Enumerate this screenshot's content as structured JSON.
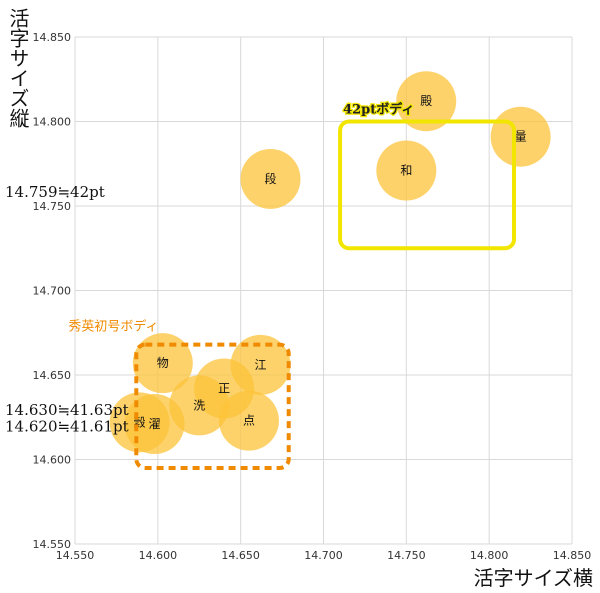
{
  "chart_data": {
    "type": "scatter",
    "xlabel": "活字サイズ横",
    "ylabel": "活字サイズ縦",
    "xlim": [
      14.55,
      14.85
    ],
    "ylim": [
      14.55,
      14.85
    ],
    "xticks": [
      "14.550",
      "14.600",
      "14.650",
      "14.700",
      "14.750",
      "14.800",
      "14.850"
    ],
    "yticks": [
      "14.550",
      "14.600",
      "14.650",
      "14.700",
      "14.750",
      "14.800",
      "14.850"
    ],
    "grid": true,
    "point_color": "#fcc33a",
    "points": [
      {
        "label": "殿",
        "x": 14.762,
        "y": 14.812
      },
      {
        "label": "量",
        "x": 14.819,
        "y": 14.791
      },
      {
        "label": "和",
        "x": 14.75,
        "y": 14.771
      },
      {
        "label": "段",
        "x": 14.668,
        "y": 14.766
      },
      {
        "label": "物",
        "x": 14.603,
        "y": 14.657
      },
      {
        "label": "江",
        "x": 14.662,
        "y": 14.656
      },
      {
        "label": "正",
        "x": 14.64,
        "y": 14.642
      },
      {
        "label": "洗",
        "x": 14.625,
        "y": 14.632
      },
      {
        "label": "点",
        "x": 14.655,
        "y": 14.623
      },
      {
        "label": "穀",
        "x": 14.589,
        "y": 14.622
      },
      {
        "label": "濯",
        "x": 14.598,
        "y": 14.621
      }
    ],
    "groups": [
      {
        "name": "42ptボディ",
        "color": "#f2e600",
        "x_range": [
          14.71,
          14.815
        ],
        "y_range": [
          14.725,
          14.8
        ],
        "style": "solid"
      },
      {
        "name": "秀英初号ボディ",
        "color": "#f08a00",
        "x_range": [
          14.587,
          14.679
        ],
        "y_range": [
          14.595,
          14.668
        ],
        "style": "dashed"
      }
    ],
    "annotations": [
      {
        "text": "14.759≒42pt",
        "value": 14.759
      },
      {
        "text": "14.630≒41.63pt",
        "value": 14.63
      },
      {
        "text": "14.620≒41.61pt",
        "value": 14.62
      }
    ]
  }
}
